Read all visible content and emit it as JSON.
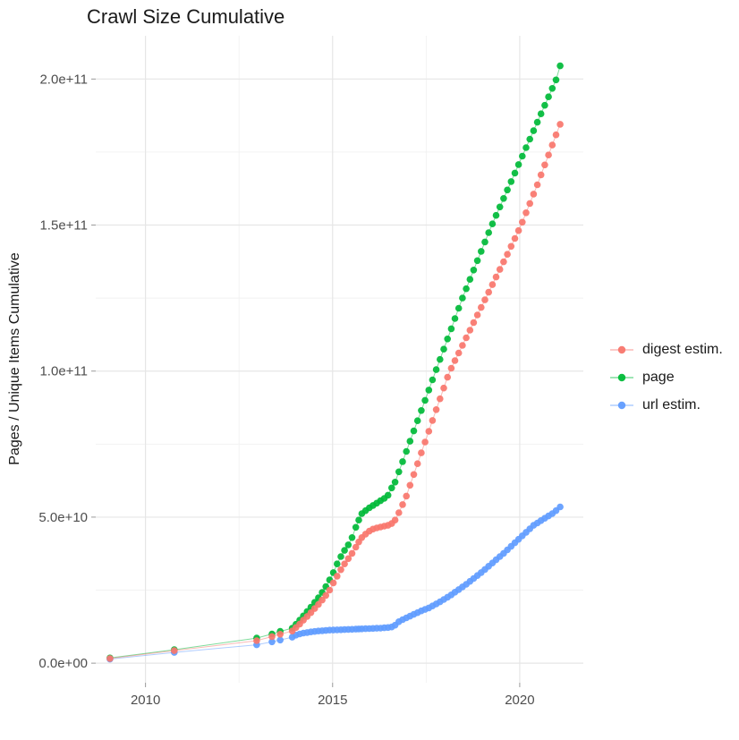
{
  "chart_data": {
    "type": "scatter",
    "title": "Crawl Size Cumulative",
    "xlabel": "",
    "ylabel": "Pages / Unique Items Cumulative",
    "value_unit": "billions (1e9) of pages / unique items",
    "xlim": [
      2008.67,
      2021.7
    ],
    "ylim_e9": [
      -6.7,
      214.8
    ],
    "grid": true,
    "legend_position": "right",
    "x_axis": {
      "major_ticks": [
        {
          "value": 2010,
          "label": "2010"
        },
        {
          "value": 2015,
          "label": "2015"
        },
        {
          "value": 2020,
          "label": "2020"
        }
      ],
      "minor_ticks": [
        2012.5,
        2017.5
      ]
    },
    "y_axis": {
      "major_ticks": [
        {
          "value_e9": 0,
          "label": "0.0e+00"
        },
        {
          "value_e9": 50,
          "label": "5.0e+10"
        },
        {
          "value_e9": 100,
          "label": "1.0e+11"
        },
        {
          "value_e9": 150,
          "label": "1.5e+11"
        },
        {
          "value_e9": 200,
          "label": "2.0e+11"
        }
      ],
      "minor_ticks_e9": [
        25,
        75,
        125,
        175
      ]
    },
    "draw_order": [
      1,
      2,
      0
    ],
    "series": [
      {
        "name": "digest estim.",
        "color": "#F8766D",
        "points": [
          [
            2009.05,
            1.6
          ],
          [
            2010.77,
            4.3
          ],
          [
            2012.97,
            7.7
          ],
          [
            2013.38,
            9.1
          ],
          [
            2013.6,
            9.9
          ],
          [
            2013.92,
            11.0
          ],
          [
            2014.02,
            12.2
          ],
          [
            2014.12,
            13.4
          ],
          [
            2014.22,
            14.7
          ],
          [
            2014.32,
            16.0
          ],
          [
            2014.42,
            17.3
          ],
          [
            2014.52,
            18.7
          ],
          [
            2014.62,
            20.1
          ],
          [
            2014.72,
            21.6
          ],
          [
            2014.82,
            23.2
          ],
          [
            2014.92,
            25.0
          ],
          [
            2015.02,
            27.5
          ],
          [
            2015.12,
            29.8
          ],
          [
            2015.22,
            32.0
          ],
          [
            2015.32,
            34.0
          ],
          [
            2015.42,
            35.8
          ],
          [
            2015.52,
            37.6
          ],
          [
            2015.62,
            39.7
          ],
          [
            2015.7,
            41.5
          ],
          [
            2015.78,
            43.0
          ],
          [
            2015.88,
            44.2
          ],
          [
            2015.98,
            45.2
          ],
          [
            2016.08,
            45.9
          ],
          [
            2016.18,
            46.3
          ],
          [
            2016.28,
            46.6
          ],
          [
            2016.38,
            46.9
          ],
          [
            2016.48,
            47.2
          ],
          [
            2016.58,
            47.8
          ],
          [
            2016.67,
            49.0
          ],
          [
            2016.77,
            51.5
          ],
          [
            2016.87,
            54.3
          ],
          [
            2016.97,
            57.2
          ],
          [
            2017.07,
            60.9
          ],
          [
            2017.17,
            64.6
          ],
          [
            2017.27,
            68.3
          ],
          [
            2017.37,
            72.0
          ],
          [
            2017.47,
            75.7
          ],
          [
            2017.57,
            79.4
          ],
          [
            2017.67,
            83.1
          ],
          [
            2017.77,
            86.8
          ],
          [
            2017.87,
            90.5
          ],
          [
            2017.97,
            94.2
          ],
          [
            2018.07,
            97.9
          ],
          [
            2018.17,
            101.0
          ],
          [
            2018.27,
            103.6
          ],
          [
            2018.37,
            106.2
          ],
          [
            2018.47,
            108.8
          ],
          [
            2018.57,
            111.4
          ],
          [
            2018.67,
            114.0
          ],
          [
            2018.77,
            116.6
          ],
          [
            2018.87,
            119.2
          ],
          [
            2018.97,
            121.8
          ],
          [
            2019.07,
            124.4
          ],
          [
            2019.17,
            127.0
          ],
          [
            2019.27,
            129.6
          ],
          [
            2019.37,
            132.2
          ],
          [
            2019.47,
            134.8
          ],
          [
            2019.57,
            137.4
          ],
          [
            2019.67,
            140.0
          ],
          [
            2019.77,
            142.7
          ],
          [
            2019.87,
            145.4
          ],
          [
            2019.97,
            148.1
          ],
          [
            2020.07,
            151.0
          ],
          [
            2020.17,
            154.2
          ],
          [
            2020.27,
            157.4
          ],
          [
            2020.37,
            160.6
          ],
          [
            2020.47,
            163.8
          ],
          [
            2020.57,
            167.2
          ],
          [
            2020.67,
            170.6
          ],
          [
            2020.77,
            174.0
          ],
          [
            2020.87,
            177.4
          ],
          [
            2020.97,
            180.9
          ],
          [
            2021.08,
            184.5
          ]
        ]
      },
      {
        "name": "page",
        "color": "#00BA38",
        "points": [
          [
            2009.05,
            1.8
          ],
          [
            2010.77,
            4.6
          ],
          [
            2012.97,
            8.6
          ],
          [
            2013.38,
            10.0
          ],
          [
            2013.6,
            10.9
          ],
          [
            2013.92,
            12.0
          ],
          [
            2014.02,
            13.3
          ],
          [
            2014.12,
            14.7
          ],
          [
            2014.22,
            16.2
          ],
          [
            2014.32,
            17.7
          ],
          [
            2014.42,
            19.2
          ],
          [
            2014.52,
            20.8
          ],
          [
            2014.62,
            22.4
          ],
          [
            2014.72,
            24.2
          ],
          [
            2014.82,
            26.2
          ],
          [
            2014.92,
            28.5
          ],
          [
            2015.02,
            31.0
          ],
          [
            2015.12,
            34.0
          ],
          [
            2015.22,
            36.5
          ],
          [
            2015.32,
            38.6
          ],
          [
            2015.42,
            40.5
          ],
          [
            2015.52,
            43.0
          ],
          [
            2015.62,
            46.5
          ],
          [
            2015.7,
            49.0
          ],
          [
            2015.78,
            51.2
          ],
          [
            2015.88,
            52.2
          ],
          [
            2015.98,
            53.2
          ],
          [
            2016.08,
            54.0
          ],
          [
            2016.18,
            54.8
          ],
          [
            2016.28,
            55.6
          ],
          [
            2016.38,
            56.4
          ],
          [
            2016.48,
            57.5
          ],
          [
            2016.58,
            60.0
          ],
          [
            2016.67,
            62.0
          ],
          [
            2016.77,
            65.5
          ],
          [
            2016.87,
            69.0
          ],
          [
            2016.97,
            72.5
          ],
          [
            2017.07,
            76.0
          ],
          [
            2017.17,
            79.5
          ],
          [
            2017.27,
            83.0
          ],
          [
            2017.37,
            86.5
          ],
          [
            2017.47,
            90.0
          ],
          [
            2017.57,
            93.5
          ],
          [
            2017.67,
            97.0
          ],
          [
            2017.77,
            100.5
          ],
          [
            2017.87,
            104.0
          ],
          [
            2017.97,
            107.5
          ],
          [
            2018.07,
            111.0
          ],
          [
            2018.17,
            114.5
          ],
          [
            2018.27,
            118.0
          ],
          [
            2018.37,
            121.5
          ],
          [
            2018.47,
            125.0
          ],
          [
            2018.57,
            128.2
          ],
          [
            2018.67,
            131.4
          ],
          [
            2018.77,
            134.6
          ],
          [
            2018.87,
            137.8
          ],
          [
            2018.97,
            141.0
          ],
          [
            2019.07,
            144.2
          ],
          [
            2019.17,
            147.4
          ],
          [
            2019.27,
            150.4
          ],
          [
            2019.37,
            153.3
          ],
          [
            2019.47,
            156.2
          ],
          [
            2019.57,
            159.1
          ],
          [
            2019.67,
            162.0
          ],
          [
            2019.77,
            164.9
          ],
          [
            2019.87,
            167.8
          ],
          [
            2019.97,
            170.7
          ],
          [
            2020.07,
            173.6
          ],
          [
            2020.17,
            176.5
          ],
          [
            2020.27,
            179.4
          ],
          [
            2020.37,
            182.3
          ],
          [
            2020.47,
            185.2
          ],
          [
            2020.57,
            188.1
          ],
          [
            2020.67,
            191.0
          ],
          [
            2020.77,
            193.9
          ],
          [
            2020.87,
            196.8
          ],
          [
            2020.97,
            199.7
          ],
          [
            2021.08,
            204.5
          ]
        ]
      },
      {
        "name": "url estim.",
        "color": "#619CFF",
        "points": [
          [
            2009.05,
            1.4
          ],
          [
            2010.77,
            3.7
          ],
          [
            2012.97,
            6.3
          ],
          [
            2013.38,
            7.3
          ],
          [
            2013.6,
            7.9
          ],
          [
            2013.92,
            8.9
          ],
          [
            2014.02,
            9.6
          ],
          [
            2014.12,
            10.0
          ],
          [
            2014.22,
            10.3
          ],
          [
            2014.32,
            10.5
          ],
          [
            2014.42,
            10.7
          ],
          [
            2014.52,
            10.85
          ],
          [
            2014.62,
            11.0
          ],
          [
            2014.72,
            11.1
          ],
          [
            2014.82,
            11.2
          ],
          [
            2014.92,
            11.3
          ],
          [
            2015.02,
            11.35
          ],
          [
            2015.12,
            11.4
          ],
          [
            2015.22,
            11.45
          ],
          [
            2015.32,
            11.5
          ],
          [
            2015.42,
            11.55
          ],
          [
            2015.52,
            11.6
          ],
          [
            2015.62,
            11.65
          ],
          [
            2015.7,
            11.7
          ],
          [
            2015.78,
            11.75
          ],
          [
            2015.88,
            11.8
          ],
          [
            2015.98,
            11.85
          ],
          [
            2016.08,
            11.9
          ],
          [
            2016.18,
            11.95
          ],
          [
            2016.28,
            12.0
          ],
          [
            2016.38,
            12.1
          ],
          [
            2016.48,
            12.2
          ],
          [
            2016.58,
            12.4
          ],
          [
            2016.67,
            13.0
          ],
          [
            2016.77,
            14.2
          ],
          [
            2016.87,
            14.9
          ],
          [
            2016.97,
            15.5
          ],
          [
            2017.07,
            16.1
          ],
          [
            2017.17,
            16.7
          ],
          [
            2017.27,
            17.3
          ],
          [
            2017.37,
            17.9
          ],
          [
            2017.47,
            18.4
          ],
          [
            2017.57,
            18.9
          ],
          [
            2017.67,
            19.6
          ],
          [
            2017.77,
            20.3
          ],
          [
            2017.87,
            21.0
          ],
          [
            2017.97,
            21.8
          ],
          [
            2018.07,
            22.6
          ],
          [
            2018.17,
            23.4
          ],
          [
            2018.27,
            24.3
          ],
          [
            2018.37,
            25.2
          ],
          [
            2018.47,
            26.1
          ],
          [
            2018.57,
            27.0
          ],
          [
            2018.67,
            28.0
          ],
          [
            2018.77,
            29.0
          ],
          [
            2018.87,
            30.0
          ],
          [
            2018.97,
            31.0
          ],
          [
            2019.07,
            32.1
          ],
          [
            2019.17,
            33.2
          ],
          [
            2019.27,
            34.3
          ],
          [
            2019.37,
            35.4
          ],
          [
            2019.47,
            36.5
          ],
          [
            2019.57,
            37.6
          ],
          [
            2019.67,
            38.8
          ],
          [
            2019.77,
            40.0
          ],
          [
            2019.87,
            41.2
          ],
          [
            2019.97,
            42.4
          ],
          [
            2020.07,
            43.6
          ],
          [
            2020.17,
            44.8
          ],
          [
            2020.27,
            46.0
          ],
          [
            2020.37,
            47.2
          ],
          [
            2020.47,
            48.0
          ],
          [
            2020.57,
            48.8
          ],
          [
            2020.67,
            49.6
          ],
          [
            2020.77,
            50.4
          ],
          [
            2020.87,
            51.2
          ],
          [
            2020.97,
            52.2
          ],
          [
            2021.08,
            53.5
          ]
        ]
      }
    ],
    "theme": {
      "background": "#FFFFFF",
      "grid_major": "#E6E6E6",
      "grid_minor": "#F1F1F1",
      "tick_mark_color": "#999999",
      "axis_text_color": "#4D4D4D",
      "text_color": "#1A1A1A"
    }
  }
}
